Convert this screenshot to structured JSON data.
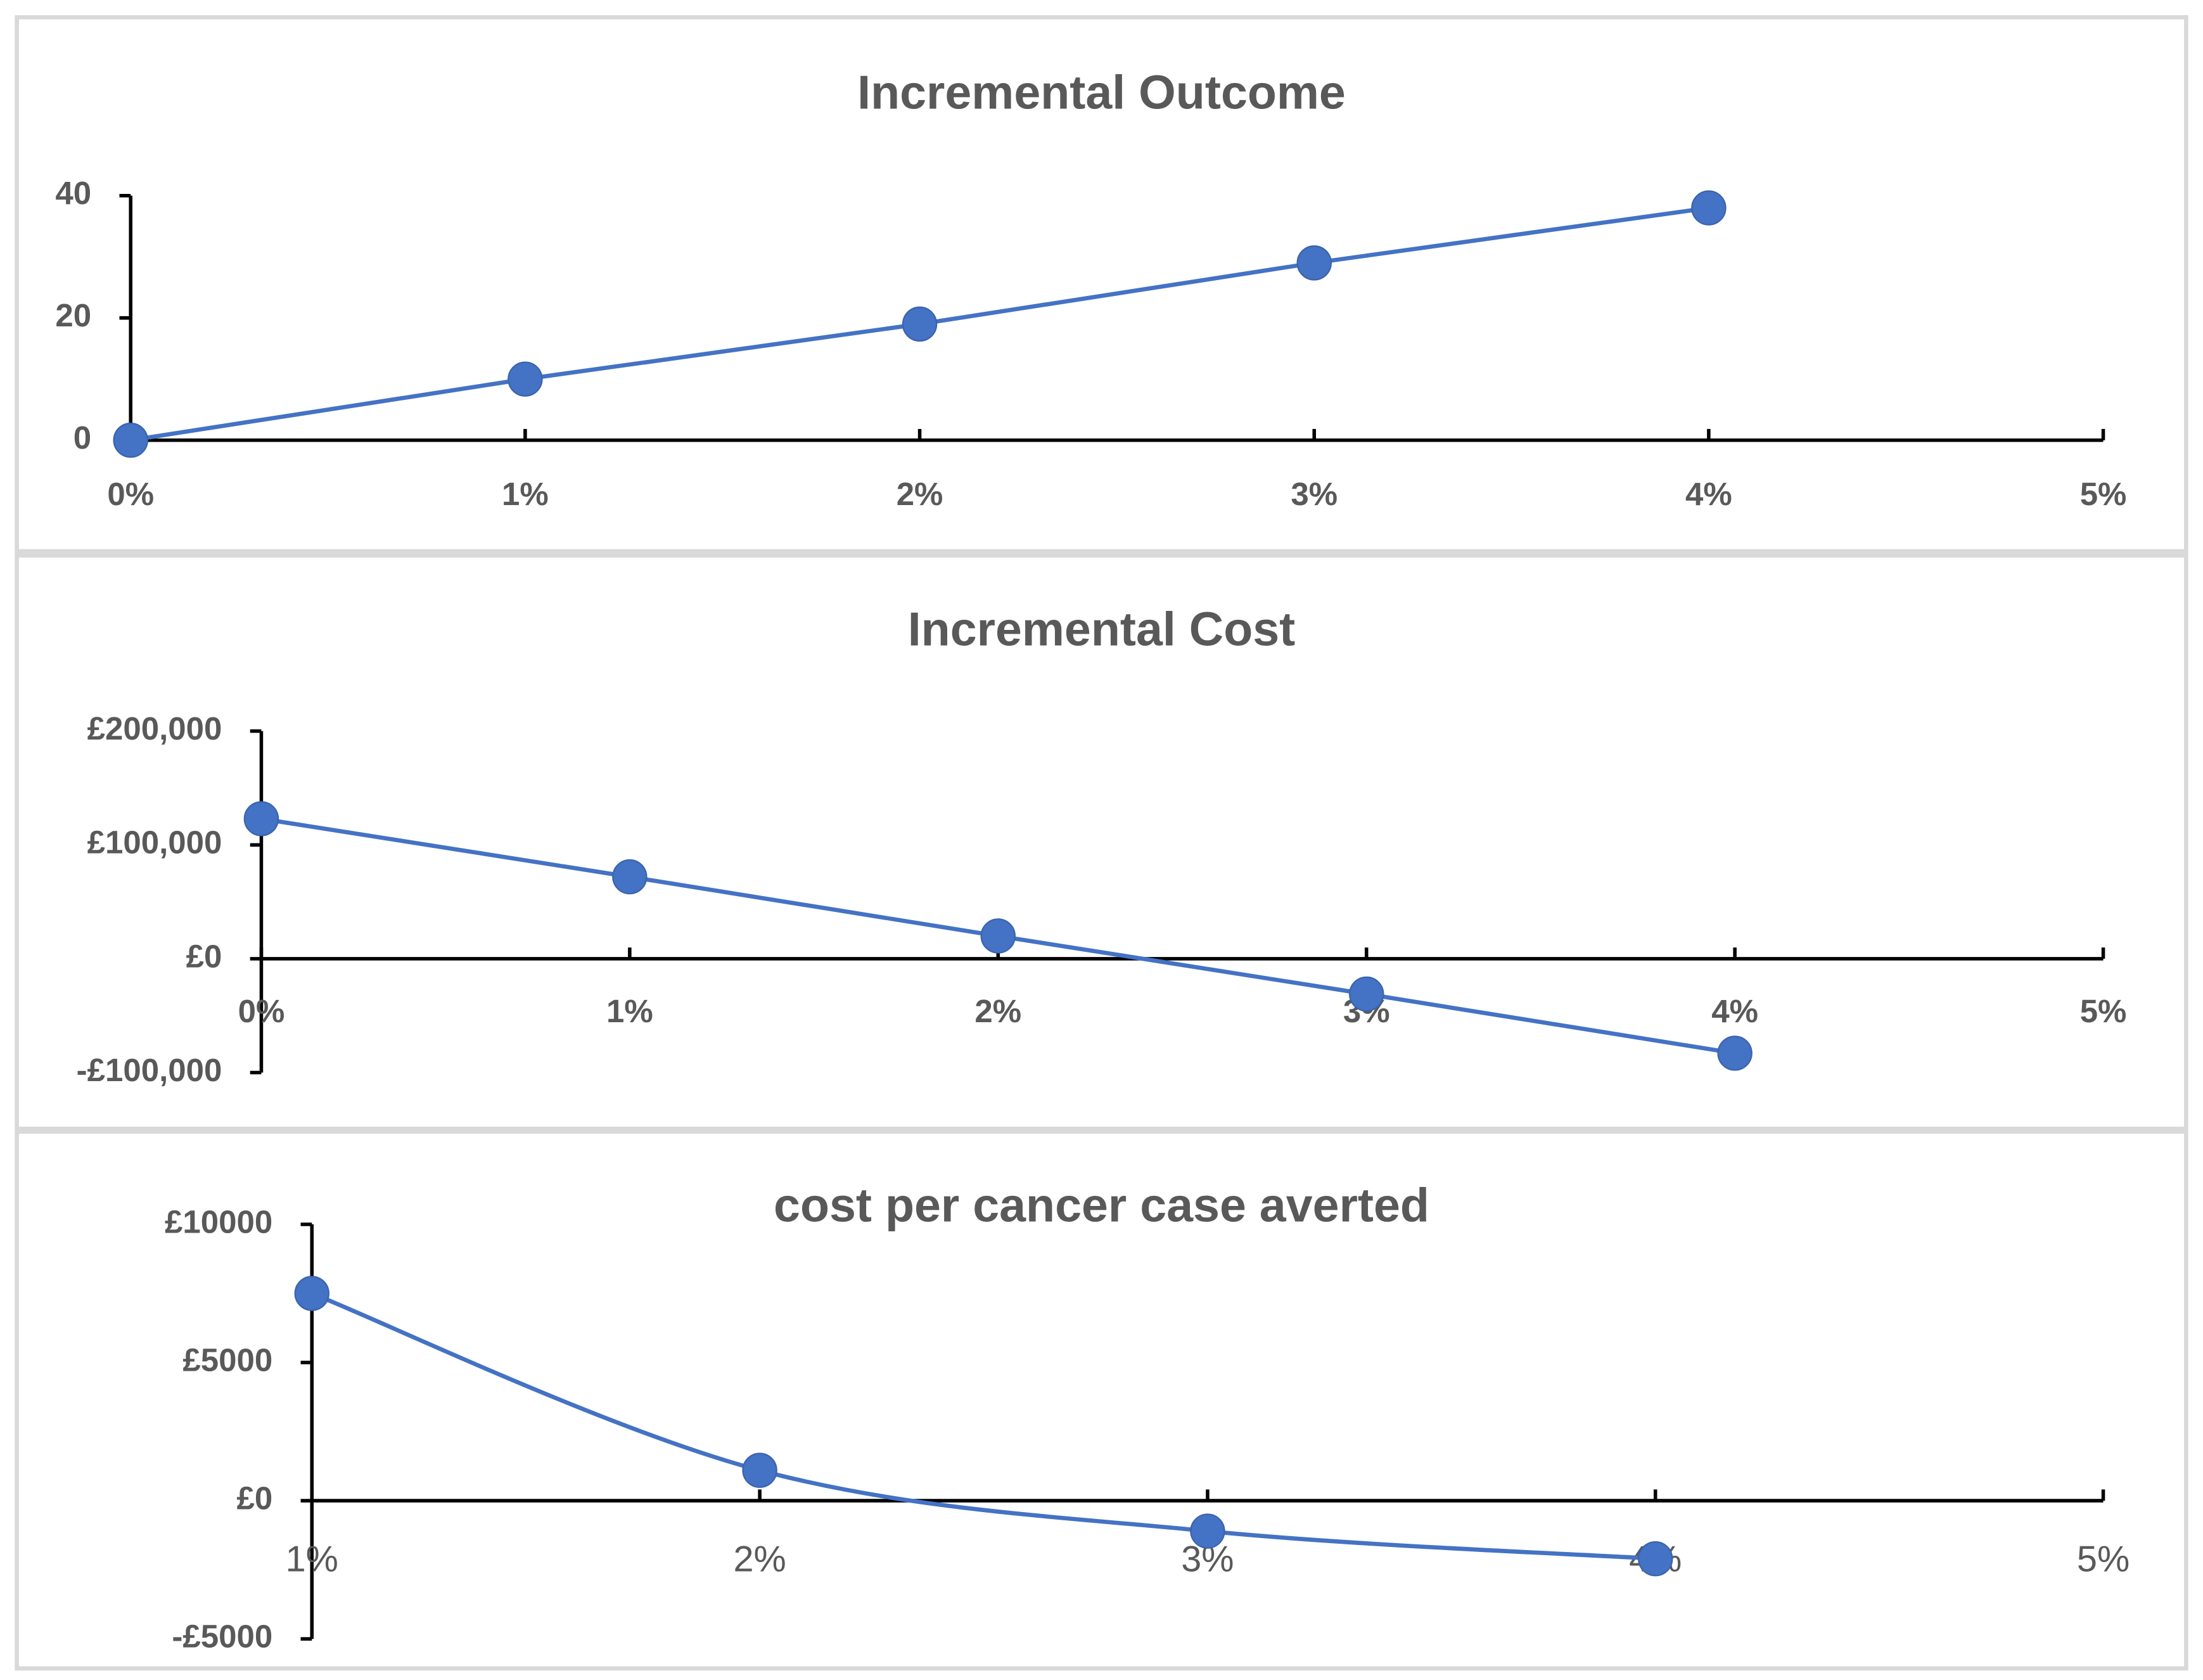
{
  "chart_data": [
    {
      "type": "line",
      "title": "Incremental Outcome",
      "x": [
        0,
        1,
        2,
        3,
        4
      ],
      "values": [
        0,
        10,
        19,
        29,
        38
      ],
      "color": "#4472c4",
      "xlim": [
        0,
        5
      ],
      "xticks": [
        {
          "value": 0,
          "label": "0%"
        },
        {
          "value": 1,
          "label": "1%"
        },
        {
          "value": 2,
          "label": "2%"
        },
        {
          "value": 3,
          "label": "3%"
        },
        {
          "value": 4,
          "label": "4%"
        },
        {
          "value": 5,
          "label": "5%"
        }
      ],
      "ylim": [
        0,
        40
      ],
      "yticks": [
        0,
        20,
        40
      ],
      "smooth": false
    },
    {
      "type": "line",
      "title": "Incremental Cost",
      "x": [
        0,
        1,
        2,
        3,
        4
      ],
      "values": [
        123000,
        72000,
        20000,
        -31000,
        -83000
      ],
      "color": "#4472c4",
      "xlim": [
        0,
        5
      ],
      "xticks": [
        {
          "value": 0,
          "label": "0%"
        },
        {
          "value": 1,
          "label": "1%"
        },
        {
          "value": 2,
          "label": "2%"
        },
        {
          "value": 3,
          "label": "3%"
        },
        {
          "value": 4,
          "label": "4%"
        },
        {
          "value": 5,
          "label": "5%"
        }
      ],
      "ylim": [
        -100000,
        200000
      ],
      "yticks": [
        {
          "value": -100000,
          "label": "-£100,000"
        },
        {
          "value": 0,
          "label": "£0"
        },
        {
          "value": 100000,
          "label": "£100,000"
        },
        {
          "value": 200000,
          "label": "£200,000"
        }
      ],
      "smooth": false
    },
    {
      "type": "line",
      "title": "cost per cancer case averted",
      "x": [
        1,
        2,
        3,
        4
      ],
      "values": [
        7500,
        1100,
        -1100,
        -2100
      ],
      "color": "#4472c4",
      "xlim": [
        1,
        5
      ],
      "xticks": [
        {
          "value": 1,
          "label": "1%"
        },
        {
          "value": 2,
          "label": "2%"
        },
        {
          "value": 3,
          "label": "3%"
        },
        {
          "value": 4,
          "label": "4%"
        },
        {
          "value": 5,
          "label": "5%"
        }
      ],
      "ylim": [
        -5000,
        10000
      ],
      "yticks": [
        {
          "value": -5000,
          "label": "-£5000"
        },
        {
          "value": 0,
          "label": "£0"
        },
        {
          "value": 5000,
          "label": "£5000"
        },
        {
          "value": 10000,
          "label": "£10000"
        }
      ],
      "smooth": true
    }
  ]
}
